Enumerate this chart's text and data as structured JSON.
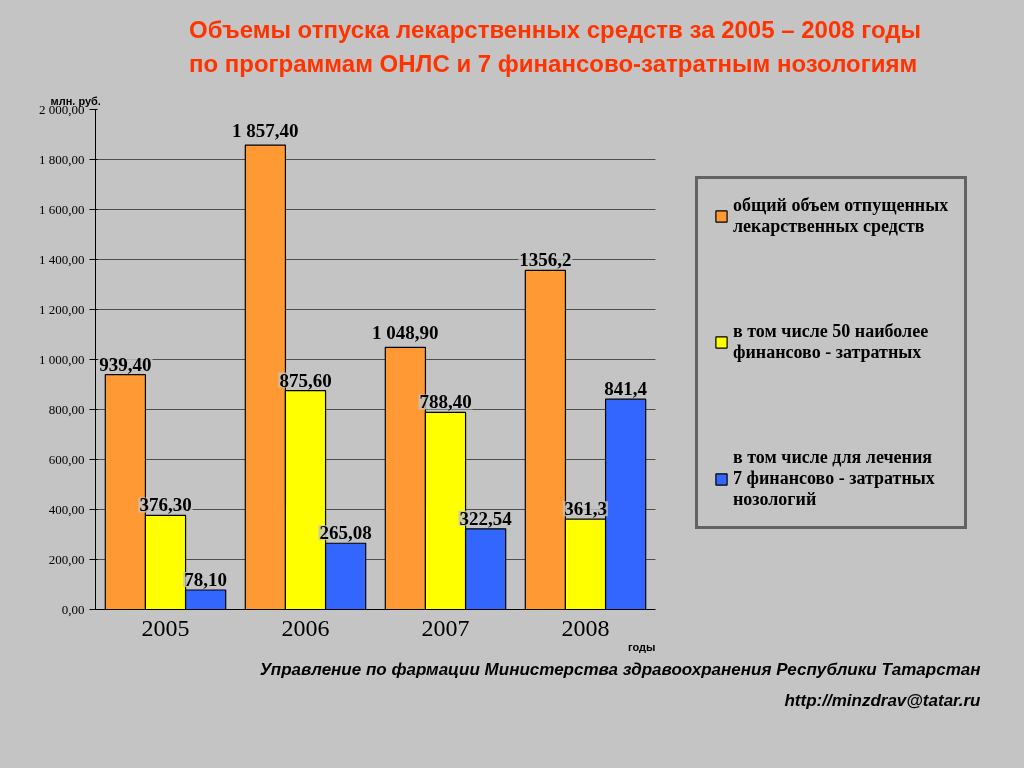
{
  "chart_data": {
    "type": "bar",
    "title": "Объемы отпуска лекарственных средств за 2005 – 2008 годы по программам ОНЛС и 7 финансово-затратным нозологиям",
    "xlabel": "годы",
    "ylabel": "млн. руб.",
    "categories": [
      "2005",
      "2006",
      "2007",
      "2008"
    ],
    "series": [
      {
        "name": "общий объем отпущенных лекарственных средств",
        "color": "#ff9933",
        "values": [
          939.4,
          1857.4,
          1048.9,
          1356.2
        ],
        "value_labels": [
          "939,40",
          "1 857,40",
          "1 048,90",
          "1356,2"
        ]
      },
      {
        "name": "в том числе 50 наиболее финансово - затратных",
        "color": "#ffff00",
        "values": [
          376.3,
          875.6,
          788.4,
          361.3
        ],
        "value_labels": [
          "376,30",
          "875,60",
          "788,40",
          "361,3"
        ]
      },
      {
        "name": "в том числе для лечения 7 финансово - затратных нозологий",
        "color": "#3366ff",
        "values": [
          78.1,
          265.08,
          322.54,
          841.4
        ],
        "value_labels": [
          "78,10",
          "265,08",
          "322,54",
          "841,4"
        ]
      }
    ],
    "ylim": [
      0,
      2000
    ],
    "yticks": [
      {
        "value": 0,
        "label": "0,00"
      },
      {
        "value": 200,
        "label": "200,00"
      },
      {
        "value": 400,
        "label": "400,00"
      },
      {
        "value": 600,
        "label": "600,00"
      },
      {
        "value": 800,
        "label": "800,00"
      },
      {
        "value": 1000,
        "label": "1 000,00"
      },
      {
        "value": 1200,
        "label": "1 200,00"
      },
      {
        "value": 1400,
        "label": "1 400,00"
      },
      {
        "value": 1600,
        "label": "1 600,00"
      },
      {
        "value": 1800,
        "label": "1 800,00"
      },
      {
        "value": 2000,
        "label": "2 000,00"
      }
    ],
    "grid": "y",
    "legend": "right",
    "annotations": [
      "Управление по фармации Министерства здравоохранения Республики Татарстан",
      "http://minzdrav@tatar.ru"
    ]
  }
}
